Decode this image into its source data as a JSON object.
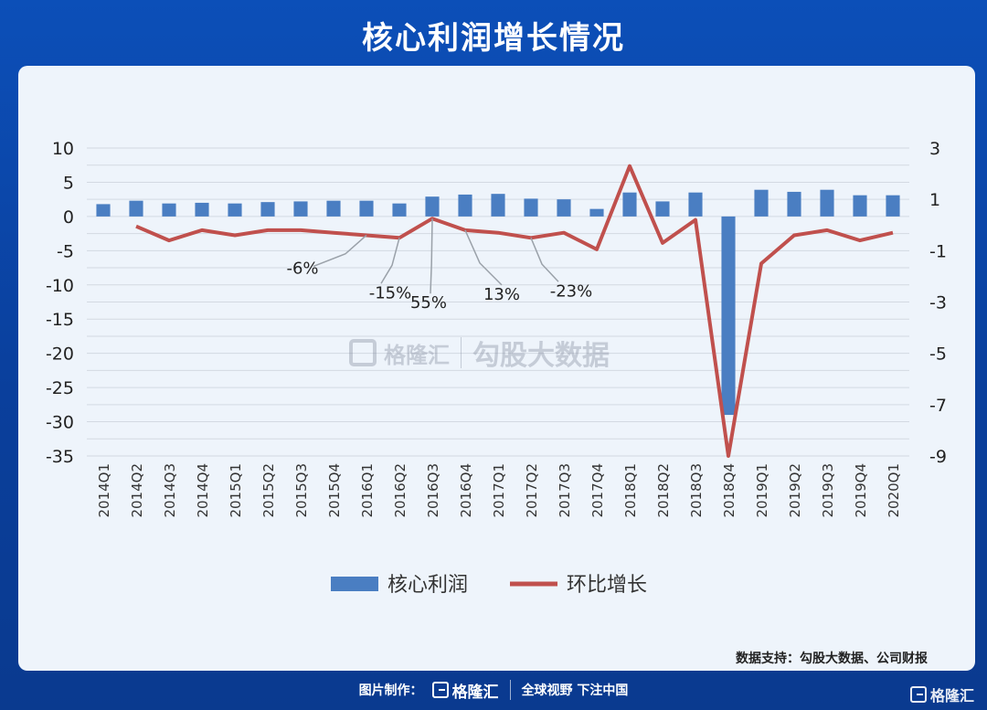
{
  "page": {
    "title": "核心利润增长情况",
    "source_note": "数据支持：勾股大数据、公司财报",
    "footer_label": "图片制作：",
    "footer_brand": "格隆汇",
    "footer_slogan": "全球视野 下注中国",
    "corner_brand": "格隆汇",
    "watermark_brand": "格隆汇",
    "watermark_text": "勾股大数据"
  },
  "chart_data": {
    "type": "bar",
    "categories": [
      "2014Q1",
      "2014Q2",
      "2014Q3",
      "2014Q4",
      "2015Q1",
      "2015Q2",
      "2015Q3",
      "2015Q4",
      "2016Q1",
      "2016Q2",
      "2016Q3",
      "2016Q4",
      "2017Q1",
      "2017Q2",
      "2017Q3",
      "2017Q4",
      "2018Q1",
      "2018Q2",
      "2018Q3",
      "2018Q4",
      "2019Q1",
      "2019Q2",
      "2019Q3",
      "2019Q4",
      "2020Q1"
    ],
    "series": [
      {
        "name": "核心利润",
        "type": "bar",
        "axis": "left",
        "color": "#4a7ec2",
        "values": [
          1.8,
          2.3,
          1.9,
          2.0,
          1.9,
          2.1,
          2.2,
          2.3,
          2.3,
          1.9,
          2.9,
          3.2,
          3.3,
          2.6,
          2.5,
          1.1,
          3.5,
          2.2,
          3.5,
          -29,
          3.9,
          3.6,
          3.9,
          3.1,
          3.1
        ]
      },
      {
        "name": "环比增长",
        "type": "line",
        "axis": "right",
        "color": "#c0504d",
        "values": [
          null,
          -0.05,
          -0.6,
          -0.2,
          -0.4,
          -0.2,
          -0.2,
          -0.3,
          -0.4,
          -0.5,
          0.25,
          -0.2,
          -0.3,
          -0.5,
          -0.3,
          -0.95,
          2.3,
          -0.7,
          0.2,
          -9,
          -1.5,
          -0.4,
          -0.2,
          -0.6,
          -0.3
        ]
      }
    ],
    "y_left": {
      "min": -35,
      "max": 10,
      "ticks": [
        10,
        5,
        0,
        -5,
        -10,
        -15,
        -20,
        -25,
        -30,
        -35
      ]
    },
    "y_right": {
      "min": -9,
      "max": 3,
      "ticks": [
        3,
        1,
        -1,
        -3,
        -5,
        -7,
        -9
      ]
    },
    "annotations": [
      {
        "text": "-6%",
        "category": "2016Q1"
      },
      {
        "text": "-15%",
        "category": "2016Q2"
      },
      {
        "text": "55%",
        "category": "2016Q3"
      },
      {
        "text": "13%",
        "category": "2016Q4"
      },
      {
        "text": "-23%",
        "category": "2017Q2"
      }
    ],
    "legend": [
      "核心利润",
      "环比增长"
    ],
    "grid": true,
    "legend_position": "bottom"
  }
}
